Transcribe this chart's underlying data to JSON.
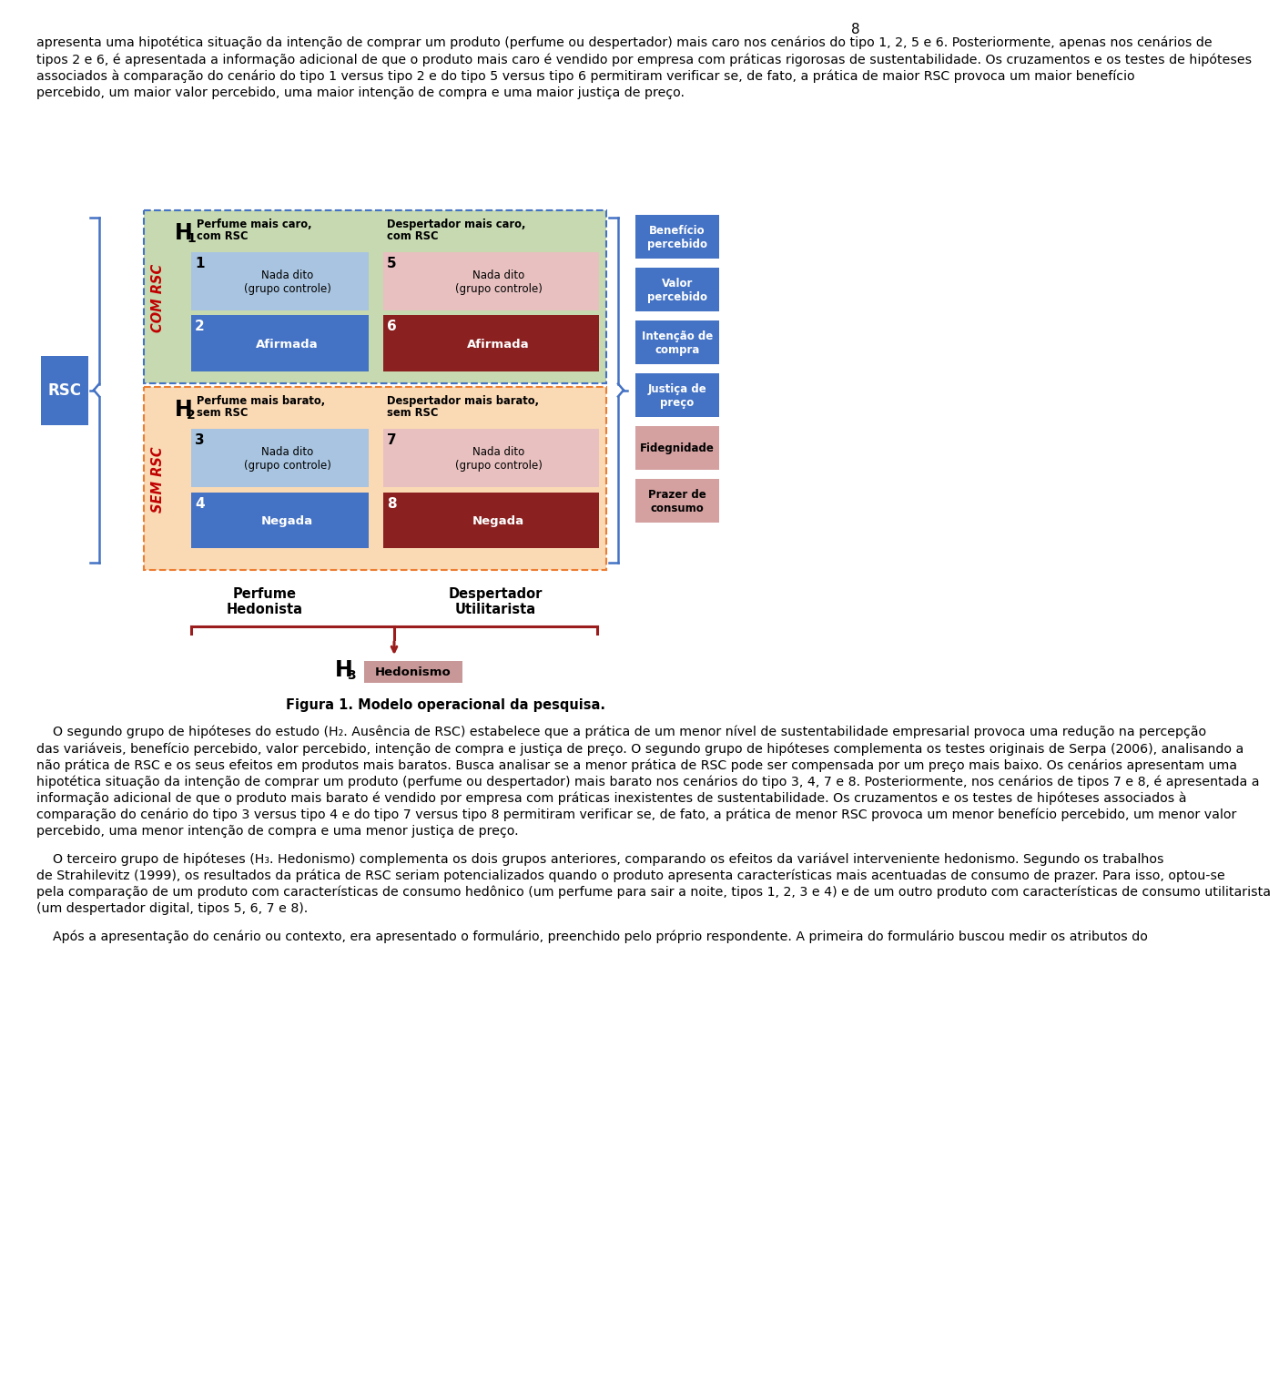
{
  "page_number": "8",
  "para1_lines": [
    "apresenta uma hipotética situação da intenção de comprar um produto (perfume ou despertador) mais caro nos cenários do tipo 1, 2, 5 e 6. Posteriormente, apenas nos cenários de",
    "tipos 2 e 6, é apresentada a informação adicional de que o produto mais caro é vendido por empresa com práticas rigorosas de sustentabilidade. Os cruzamentos e os testes de hipóteses",
    "associados à comparação do cenário do tipo 1 versus tipo 2 e do tipo 5 versus tipo 6 permitiram verificar se, de fato, a prática de maior RSC provoca um maior benefício",
    "percebido, um maior valor percebido, uma maior intenção de compra e uma maior justiça de preço."
  ],
  "diag": {
    "rsc_bg": "#4472C4",
    "top_bg": "#C6D9B0",
    "bot_bg": "#FAD9B5",
    "top_border": "#4472C4",
    "bot_border": "#ED7D31",
    "com_rsc_color": "#C00000",
    "sem_rsc_color": "#C00000",
    "box1_bg": "#A8C4E0",
    "box2_bg": "#4472C4",
    "box3_bg": "#A8C4E0",
    "box4_bg": "#4472C4",
    "box5_bg": "#E8C0C0",
    "box6_bg": "#8B2020",
    "box7_bg": "#E8C0C0",
    "box8_bg": "#8B2020",
    "hedonismo_bg": "#C89898",
    "rb1_bg": "#4472C4",
    "rb2_bg": "#4472C4",
    "rb3_bg": "#4472C4",
    "rb4_bg": "#4472C4",
    "rb5_bg": "#D4A0A0",
    "rb6_bg": "#D4A0A0"
  },
  "para2_lines": [
    "    O segundo grupo de hipóteses do estudo (H₂. Ausência de RSC) estabelece que a prática de um menor nível de sustentabilidade empresarial provoca uma redução na percepção",
    "das variáveis, benefício percebido, valor percebido, intenção de compra e justiça de preço. O segundo grupo de hipóteses complementa os testes originais de Serpa (2006), analisando a",
    "não prática de RSC e os seus efeitos em produtos mais baratos. Busca analisar se a menor prática de RSC pode ser compensada por um preço mais baixo. Os cenários apresentam uma",
    "hipotética situação da intenção de comprar um produto (perfume ou despertador) mais barato nos cenários do tipo 3, 4, 7 e 8. Posteriormente, nos cenários de tipos 7 e 8, é apresentada a",
    "informação adicional de que o produto mais barato é vendido por empresa com práticas inexistentes de sustentabilidade. Os cruzamentos e os testes de hipóteses associados à",
    "comparação do cenário do tipo 3 versus tipo 4 e do tipo 7 versus tipo 8 permitiram verificar se, de fato, a prática de menor RSC provoca um menor benefício percebido, um menor valor",
    "percebido, uma menor intenção de compra e uma menor justiça de preço."
  ],
  "para3_lines": [
    "    O terceiro grupo de hipóteses (H₃. Hedonismo) complementa os dois grupos anteriores, comparando os efeitos da variável interveniente hedonismo. Segundo os trabalhos",
    "de Strahilevitz (1999), os resultados da prática de RSC seriam potencializados quando o produto apresenta características mais acentuadas de consumo de prazer. Para isso, optou-se",
    "pela comparação de um produto com características de consumo hedônico (um perfume para sair a noite, tipos 1, 2, 3 e 4) e de um outro produto com características de consumo utilitarista",
    "(um despertador digital, tipos 5, 6, 7 e 8)."
  ],
  "para4_lines": [
    "    Após a apresentação do cenário ou contexto, era apresentado o formulário, preenchido pelo próprio respondente. A primeira do formulário buscou medir os atributos do"
  ],
  "figure_caption": "Figura 1. Modelo operacional da pesquisa."
}
